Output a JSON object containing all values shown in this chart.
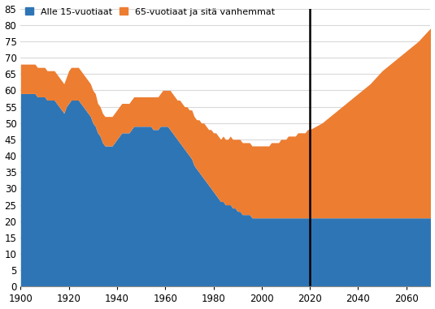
{
  "title": "",
  "legend_labels": [
    "Alle 15-vuotiaat",
    "65-vuotiaat ja sitä vanhemmat"
  ],
  "legend_colors": [
    "#2e75b6",
    "#ed7d31"
  ],
  "background_color": "#ffffff",
  "xlim": [
    1900,
    2070
  ],
  "ylim": [
    0,
    85
  ],
  "yticks": [
    0,
    5,
    10,
    15,
    20,
    25,
    30,
    35,
    40,
    45,
    50,
    55,
    60,
    65,
    70,
    75,
    80,
    85
  ],
  "xticks": [
    1900,
    1920,
    1940,
    1960,
    1980,
    2000,
    2020,
    2040,
    2060
  ],
  "vline_x": 2020,
  "years": [
    1900,
    1901,
    1902,
    1903,
    1904,
    1905,
    1906,
    1907,
    1908,
    1909,
    1910,
    1911,
    1912,
    1913,
    1914,
    1915,
    1916,
    1917,
    1918,
    1919,
    1920,
    1921,
    1922,
    1923,
    1924,
    1925,
    1926,
    1927,
    1928,
    1929,
    1930,
    1931,
    1932,
    1933,
    1934,
    1935,
    1936,
    1937,
    1938,
    1939,
    1940,
    1941,
    1942,
    1943,
    1944,
    1945,
    1946,
    1947,
    1948,
    1949,
    1950,
    1951,
    1952,
    1953,
    1954,
    1955,
    1956,
    1957,
    1958,
    1959,
    1960,
    1961,
    1962,
    1963,
    1964,
    1965,
    1966,
    1967,
    1968,
    1969,
    1970,
    1971,
    1972,
    1973,
    1974,
    1975,
    1976,
    1977,
    1978,
    1979,
    1980,
    1981,
    1982,
    1983,
    1984,
    1985,
    1986,
    1987,
    1988,
    1989,
    1990,
    1991,
    1992,
    1993,
    1994,
    1995,
    1996,
    1997,
    1998,
    1999,
    2000,
    2001,
    2002,
    2003,
    2004,
    2005,
    2006,
    2007,
    2008,
    2009,
    2010,
    2011,
    2012,
    2013,
    2014,
    2015,
    2016,
    2017,
    2018,
    2019,
    2020,
    2025,
    2030,
    2035,
    2040,
    2045,
    2050,
    2055,
    2060,
    2065,
    2070
  ],
  "under15": [
    59,
    59,
    59,
    59,
    59,
    59,
    59,
    58,
    58,
    58,
    58,
    57,
    57,
    57,
    57,
    56,
    55,
    54,
    53,
    55,
    56,
    57,
    57,
    57,
    57,
    56,
    55,
    54,
    53,
    52,
    50,
    49,
    47,
    46,
    44,
    43,
    43,
    43,
    43,
    44,
    45,
    46,
    47,
    47,
    47,
    47,
    48,
    49,
    49,
    49,
    49,
    49,
    49,
    49,
    49,
    48,
    48,
    48,
    49,
    49,
    49,
    49,
    48,
    47,
    46,
    45,
    44,
    43,
    42,
    41,
    40,
    39,
    37,
    36,
    35,
    34,
    33,
    32,
    31,
    30,
    29,
    28,
    27,
    26,
    26,
    25,
    25,
    25,
    24,
    24,
    23,
    23,
    22,
    22,
    22,
    22,
    21,
    21,
    21,
    21,
    21,
    21,
    21,
    21,
    21,
    21,
    21,
    21,
    21,
    21,
    21,
    21,
    21,
    21,
    21,
    21,
    21,
    21,
    21,
    21,
    21,
    21,
    21,
    21,
    21,
    21,
    21,
    21,
    21,
    21,
    21
  ],
  "over65": [
    9,
    9,
    9,
    9,
    9,
    9,
    9,
    9,
    9,
    9,
    9,
    9,
    9,
    9,
    9,
    9,
    9,
    9,
    9,
    9,
    10,
    10,
    10,
    10,
    10,
    10,
    10,
    10,
    10,
    10,
    10,
    10,
    9,
    9,
    9,
    9,
    9,
    9,
    9,
    9,
    9,
    9,
    9,
    9,
    9,
    9,
    9,
    9,
    9,
    9,
    9,
    9,
    9,
    9,
    9,
    10,
    10,
    10,
    10,
    11,
    11,
    11,
    12,
    12,
    12,
    12,
    13,
    13,
    13,
    14,
    14,
    15,
    15,
    15,
    16,
    16,
    17,
    17,
    17,
    18,
    18,
    19,
    19,
    19,
    20,
    20,
    20,
    21,
    21,
    21,
    22,
    22,
    22,
    22,
    22,
    22,
    22,
    22,
    22,
    22,
    22,
    22,
    22,
    22,
    23,
    23,
    23,
    23,
    24,
    24,
    24,
    25,
    25,
    25,
    25,
    26,
    26,
    26,
    26,
    27,
    27,
    29,
    32,
    35,
    38,
    41,
    45,
    48,
    51,
    54,
    58
  ],
  "grid_color": "#d9d9d9",
  "line_color": "#000000"
}
